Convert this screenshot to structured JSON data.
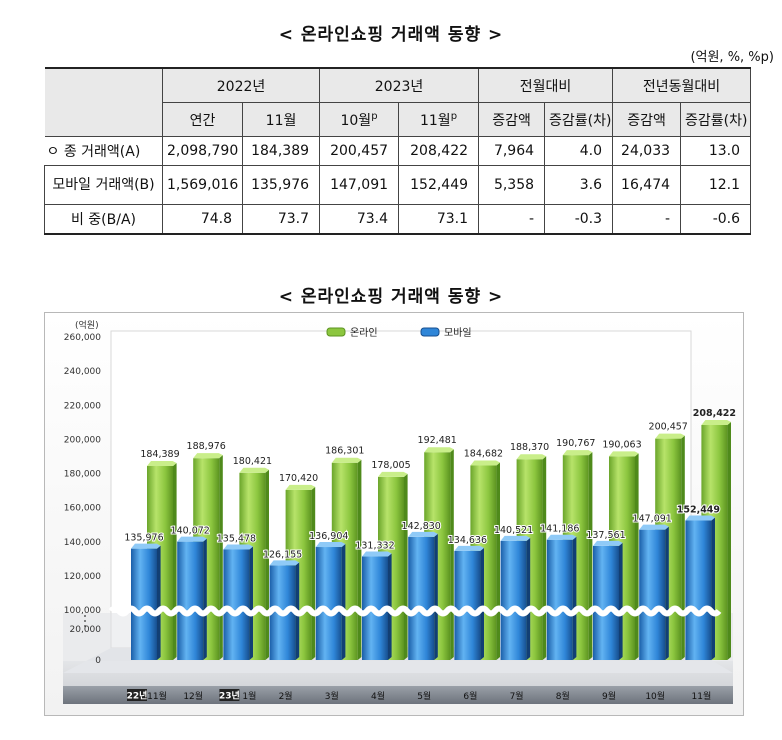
{
  "table_title": "< 온라인쇼핑 거래액 동향 >",
  "unit": "(억원, %, %p)",
  "table": {
    "header_groups": [
      "2022년",
      "2023년",
      "전월대비",
      "전년동월대비"
    ],
    "subheaders": [
      "연간",
      "11월",
      "10월",
      "11월",
      "증감액",
      "증감률(차)",
      "증감액",
      "증감률(차)"
    ],
    "sup_p": "p",
    "rows": [
      {
        "label": "ㅇ 종 거래액(A)",
        "values": [
          "2,098,790",
          "184,389",
          "200,457",
          "208,422",
          "7,964",
          "4.0",
          "24,033",
          "13.0"
        ]
      },
      {
        "label": "모바일 거래액(B)",
        "values": [
          "1,569,016",
          "135,976",
          "147,091",
          "152,449",
          "5,358",
          "3.6",
          "16,474",
          "12.1"
        ]
      },
      {
        "label": "비 중(B/A)",
        "values": [
          "74.8",
          "73.7",
          "73.4",
          "73.1",
          "-",
          "-0.3",
          "-",
          "-0.6"
        ]
      }
    ]
  },
  "chart_title": "< 온라인쇼핑 거래액 동향 >",
  "chart_data": {
    "type": "bar",
    "y_unit_label": "(억원)",
    "categories": [
      "11월",
      "12월",
      "1월",
      "2월",
      "3월",
      "4월",
      "5월",
      "6월",
      "7월",
      "8월",
      "9월",
      "10월",
      "11월"
    ],
    "year_markers": {
      "0": "22년",
      "2": "23년"
    },
    "series": [
      {
        "name": "온라인",
        "color": "#8cc63f",
        "values": [
          184389,
          188976,
          180421,
          170420,
          186301,
          178005,
          192481,
          184682,
          188370,
          190767,
          190063,
          200457,
          208422
        ]
      },
      {
        "name": "모바일",
        "color": "#2f86d8",
        "values": [
          135976,
          140072,
          135478,
          126155,
          136904,
          131332,
          142830,
          134636,
          140521,
          141186,
          137561,
          147091,
          152449
        ]
      }
    ],
    "value_labels": {
      "온라인": [
        "184,389",
        "188,976",
        "180,421",
        "170,420",
        "186,301",
        "178,005",
        "192,481",
        "184,682",
        "188,370",
        "190,767",
        "190,063",
        "200,457",
        "208,422"
      ],
      "모바일": [
        "135,976",
        "140,072",
        "135,478",
        "126,155",
        "136,904",
        "131,332",
        "142,830",
        "134,636",
        "140,521",
        "141,186",
        "137,561",
        "147,091",
        "152,449"
      ]
    },
    "y_ticks": [
      "260,000",
      "240,000",
      "220,000",
      "200,000",
      "180,000",
      "160,000",
      "140,000",
      "120,000",
      "100,000",
      "20,000",
      "0"
    ],
    "y_tick_values": [
      260000,
      240000,
      220000,
      200000,
      180000,
      160000,
      140000,
      120000,
      100000,
      20000,
      0
    ],
    "axis_break": true,
    "legend_position": "top-center"
  }
}
